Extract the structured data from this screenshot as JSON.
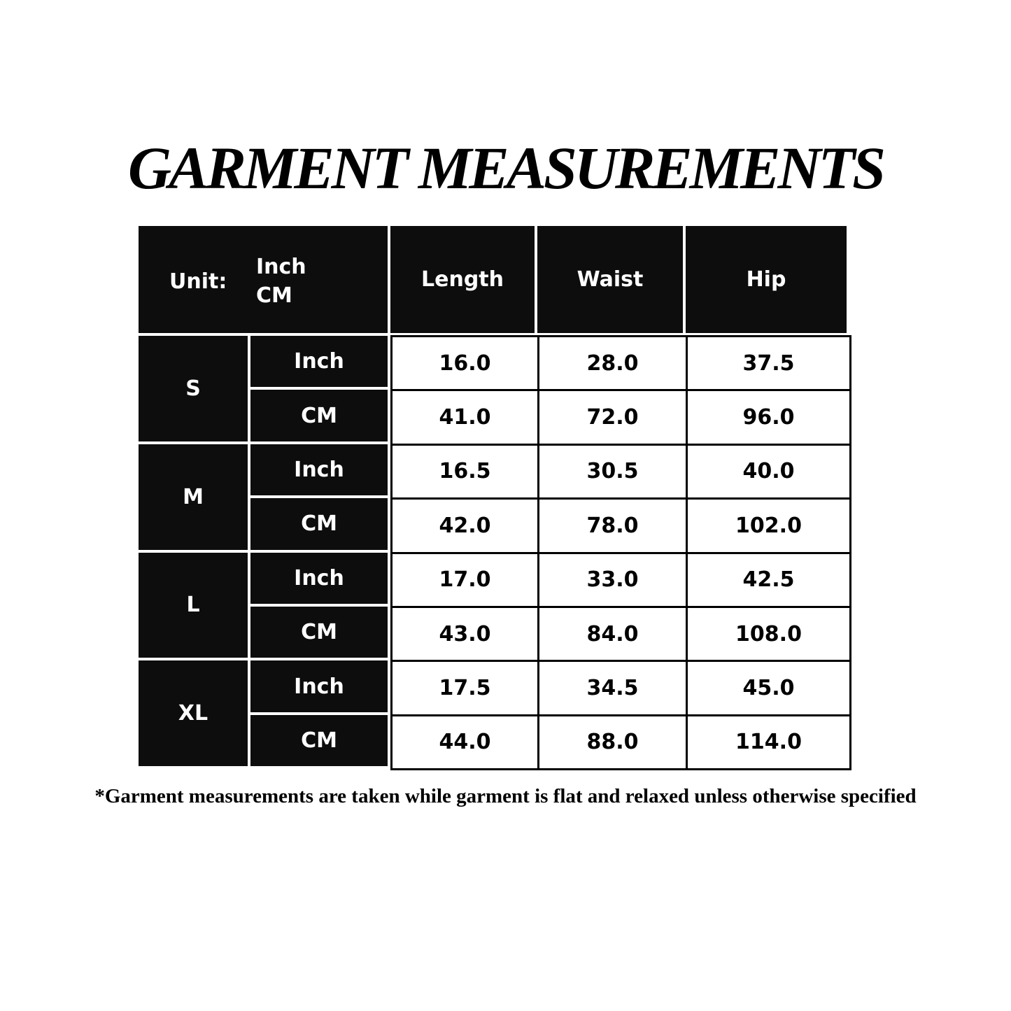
{
  "title": "GARMENT MEASUREMENTS",
  "header": {
    "unit_label": "Unit:",
    "unit_top": "Inch",
    "unit_bottom": "CM",
    "columns": [
      "Length",
      "Waist",
      "Hip"
    ]
  },
  "sizes": [
    {
      "size": "S",
      "rows": [
        {
          "unit": "Inch",
          "values": [
            "16.0",
            "28.0",
            "37.5"
          ]
        },
        {
          "unit": "CM",
          "values": [
            "41.0",
            "72.0",
            "96.0"
          ]
        }
      ]
    },
    {
      "size": "M",
      "rows": [
        {
          "unit": "Inch",
          "values": [
            "16.5",
            "30.5",
            "40.0"
          ]
        },
        {
          "unit": "CM",
          "values": [
            "42.0",
            "78.0",
            "102.0"
          ]
        }
      ]
    },
    {
      "size": "L",
      "rows": [
        {
          "unit": "Inch",
          "values": [
            "17.0",
            "33.0",
            "42.5"
          ]
        },
        {
          "unit": "CM",
          "values": [
            "43.0",
            "84.0",
            "108.0"
          ]
        }
      ]
    },
    {
      "size": "XL",
      "rows": [
        {
          "unit": "Inch",
          "values": [
            "17.5",
            "34.5",
            "45.0"
          ]
        },
        {
          "unit": "CM",
          "values": [
            "44.0",
            "88.0",
            "114.0"
          ]
        }
      ]
    }
  ],
  "footnote": "*Garment measurements are taken while garment is flat and relaxed unless otherwise specified"
}
